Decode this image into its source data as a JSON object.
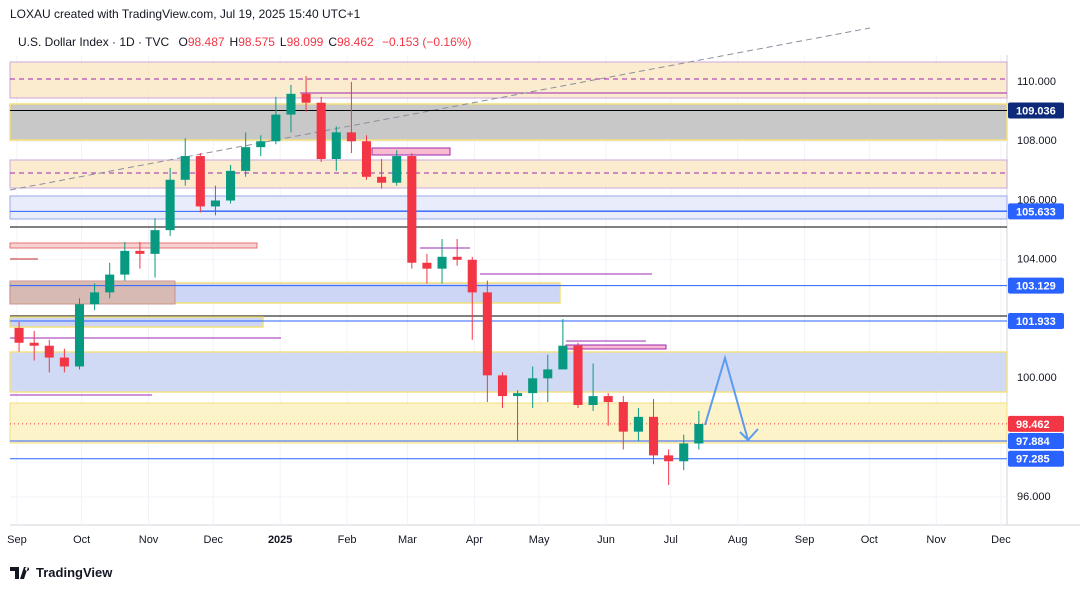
{
  "header": {
    "credit": "LOXAU created with TradingView.com, Jul 19, 2025 15:40 UTC+1",
    "symbol": "U.S. Dollar Index · 1D · TVC",
    "ohlc": [
      {
        "key": "O",
        "value": "98.487"
      },
      {
        "key": "H",
        "value": "98.575"
      },
      {
        "key": "L",
        "value": "98.099"
      },
      {
        "key": "C",
        "value": "98.462"
      }
    ],
    "change": "−0.153 (−0.16%)"
  },
  "footer": {
    "brand": "TradingView"
  },
  "chart_data": {
    "type": "candlestick",
    "x": [
      1,
      8,
      15,
      22,
      29,
      36,
      43,
      50,
      57,
      64,
      71,
      78,
      85,
      92,
      99,
      106,
      113,
      120,
      127,
      134,
      141,
      148,
      155,
      162,
      169,
      176,
      183,
      190,
      197,
      204,
      211,
      218,
      225,
      232,
      239,
      246,
      253,
      260,
      267,
      274,
      281,
      288,
      295,
      302,
      309,
      316
    ],
    "open": [
      101.7,
      101.2,
      101.1,
      100.7,
      100.4,
      102.5,
      102.9,
      103.5,
      104.3,
      104.2,
      105.0,
      106.7,
      107.5,
      105.8,
      106.0,
      107.0,
      107.8,
      108.0,
      108.9,
      109.6,
      109.3,
      107.4,
      108.3,
      108.0,
      106.8,
      106.6,
      107.5,
      103.9,
      103.7,
      104.1,
      104.0,
      102.9,
      100.1,
      99.4,
      99.5,
      100.0,
      100.3,
      101.1,
      99.1,
      99.4,
      99.2,
      98.2,
      98.7,
      97.4,
      97.2,
      97.8
    ],
    "high": [
      101.9,
      101.6,
      101.3,
      101.0,
      102.7,
      103.2,
      103.9,
      104.6,
      104.6,
      105.4,
      107.1,
      108.1,
      107.6,
      106.5,
      107.2,
      108.3,
      108.2,
      109.5,
      109.9,
      110.2,
      109.5,
      108.5,
      110.0,
      108.2,
      107.4,
      107.7,
      107.6,
      104.2,
      104.7,
      104.7,
      104.1,
      103.3,
      100.2,
      99.6,
      100.4,
      100.8,
      102.0,
      101.2,
      100.5,
      99.5,
      99.4,
      99.0,
      99.3,
      97.6,
      98.1,
      98.9
    ],
    "low": [
      100.9,
      100.6,
      100.2,
      100.2,
      100.3,
      102.3,
      102.7,
      103.3,
      103.7,
      103.4,
      104.8,
      106.5,
      105.6,
      105.5,
      105.9,
      106.8,
      107.5,
      107.9,
      108.3,
      109.0,
      107.3,
      107.0,
      107.6,
      106.7,
      106.4,
      106.5,
      103.7,
      103.2,
      103.2,
      103.8,
      101.3,
      99.2,
      99.0,
      97.9,
      99.0,
      99.2,
      100.3,
      99.0,
      98.9,
      98.4,
      97.6,
      97.9,
      97.1,
      96.4,
      96.9,
      97.6
    ],
    "close": [
      101.2,
      101.1,
      100.7,
      100.4,
      102.5,
      102.9,
      103.5,
      104.3,
      104.2,
      105.0,
      106.7,
      107.5,
      105.8,
      106.0,
      107.0,
      107.8,
      108.0,
      108.9,
      109.6,
      109.3,
      107.4,
      108.3,
      108.0,
      106.8,
      106.6,
      107.5,
      103.9,
      103.7,
      104.1,
      104.0,
      102.9,
      100.1,
      99.4,
      99.5,
      100.0,
      100.3,
      101.1,
      99.1,
      99.4,
      99.2,
      98.2,
      98.7,
      97.4,
      97.2,
      97.8,
      98.46
    ],
    "up_color": "#089981",
    "down_color": "#f23645",
    "xlim": [
      -3.2,
      458.8
    ],
    "xticks": [
      {
        "value": 0,
        "label": "Sep"
      },
      {
        "value": 30,
        "label": "Oct"
      },
      {
        "value": 61,
        "label": "Nov"
      },
      {
        "value": 91,
        "label": "Dec"
      },
      {
        "value": 122,
        "label": "2025"
      },
      {
        "value": 153,
        "label": "Feb"
      },
      {
        "value": 181,
        "label": "Mar"
      },
      {
        "value": 212,
        "label": "Apr"
      },
      {
        "value": 242,
        "label": "May"
      },
      {
        "value": 273,
        "label": "Jun"
      },
      {
        "value": 303,
        "label": "Jul"
      },
      {
        "value": 334,
        "label": "Aug"
      },
      {
        "value": 365,
        "label": "Sep"
      },
      {
        "value": 395,
        "label": "Oct"
      },
      {
        "value": 426,
        "label": "Nov"
      },
      {
        "value": 456,
        "label": "Dec"
      }
    ],
    "ylim": [
      95.05,
      110.91
    ],
    "yticks": [
      {
        "value": 110,
        "label": "110.000"
      },
      {
        "value": 108,
        "label": "108.000"
      },
      {
        "value": 106,
        "label": "106.000"
      },
      {
        "value": 104,
        "label": "104.000"
      },
      {
        "value": 100,
        "label": "100.000"
      },
      {
        "value": 96,
        "label": "96.000"
      }
    ],
    "price_badges": [
      {
        "value": 109.036,
        "label": "109.036",
        "color": "#0d2a7a"
      },
      {
        "value": 105.633,
        "label": "105.633",
        "color": "#2962ff"
      },
      {
        "value": 103.129,
        "label": "103.129",
        "color": "#2962ff"
      },
      {
        "value": 101.933,
        "label": "101.933",
        "color": "#2962ff"
      },
      {
        "value": 98.462,
        "label": "98.462",
        "color": "#f23645"
      },
      {
        "value": 97.884,
        "label": "97.884",
        "color": "#2962ff"
      },
      {
        "value": 97.285,
        "label": "97.285",
        "color": "#2962ff"
      }
    ]
  }
}
